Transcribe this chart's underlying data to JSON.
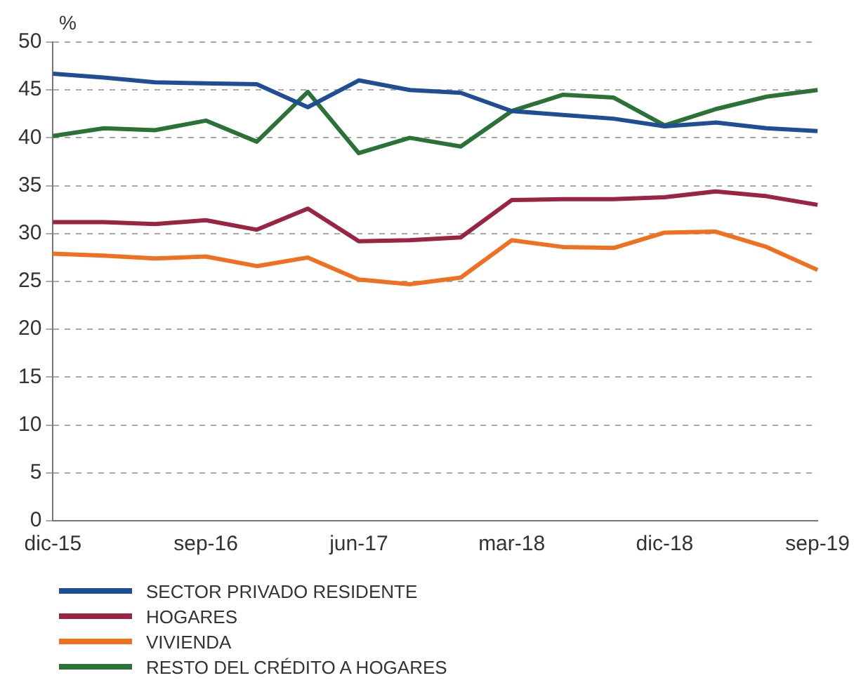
{
  "chart_data": {
    "type": "line",
    "ylabel": "%",
    "categories": [
      "dic-15",
      null,
      null,
      "sep-16",
      null,
      null,
      "jun-17",
      null,
      null,
      "mar-18",
      null,
      null,
      "dic-18",
      null,
      null,
      "sep-19"
    ],
    "series": [
      {
        "name": "SECTOR PRIVADO RESIDENTE",
        "color": "#1f4e96",
        "values": [
          46.7,
          46.3,
          45.8,
          45.7,
          45.6,
          43.2,
          46.0,
          45.0,
          44.7,
          42.8,
          42.4,
          42.0,
          41.2,
          41.6,
          41.0,
          40.7
        ]
      },
      {
        "name": "HOGARES",
        "color": "#9b2442",
        "values": [
          31.2,
          31.2,
          31.0,
          31.4,
          30.4,
          32.6,
          29.2,
          29.3,
          29.6,
          33.5,
          33.6,
          33.6,
          33.8,
          34.4,
          33.9,
          33.0
        ]
      },
      {
        "name": "VIVIENDA",
        "color": "#f07020",
        "values": [
          27.9,
          27.7,
          27.4,
          27.6,
          26.6,
          27.5,
          25.2,
          24.7,
          25.4,
          29.3,
          28.6,
          28.5,
          30.1,
          30.2,
          28.6,
          26.2
        ]
      },
      {
        "name": "RESTO DEL CRÉDITO A HOGARES",
        "color": "#2a7236",
        "values": [
          40.2,
          41.0,
          40.8,
          41.8,
          39.6,
          44.8,
          38.4,
          40.0,
          39.1,
          42.8,
          44.5,
          44.2,
          41.3,
          43.0,
          44.3,
          45.0
        ]
      }
    ],
    "ylim": [
      0,
      50
    ],
    "yticks": [
      0,
      5,
      10,
      15,
      20,
      25,
      30,
      35,
      40,
      45,
      50
    ],
    "grid": "y",
    "legend": "bottom",
    "marker": "none",
    "line_style": "solid"
  }
}
